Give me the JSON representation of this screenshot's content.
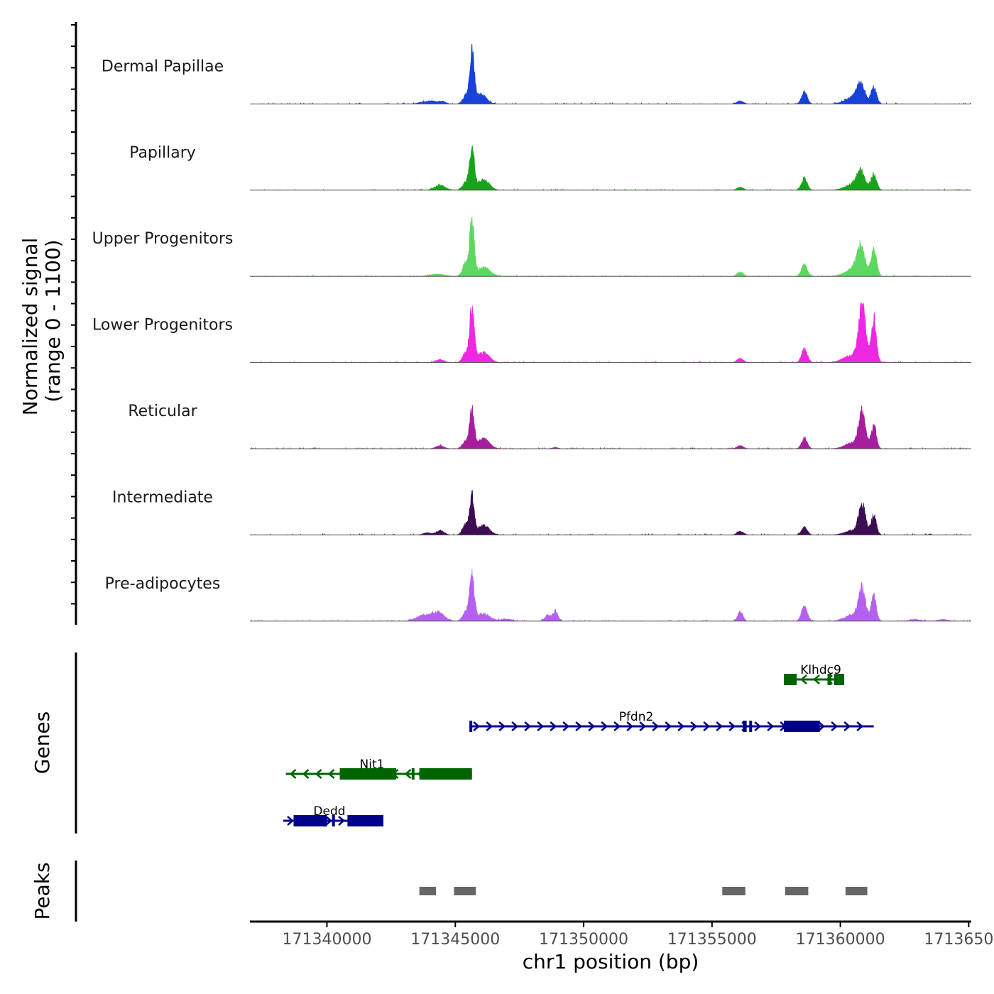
{
  "chart_data": {
    "type": "area",
    "title": "",
    "chromosome": "chr1",
    "xlabel": "chr1 position (bp)",
    "ylabel_line1": "Normalized signal",
    "ylabel_line2": "(range 0 - 1100)",
    "ylim": [
      0,
      1100
    ],
    "xlim": [
      171337000,
      171365100
    ],
    "x_ticks": [
      171340000,
      171345000,
      171350000,
      171355000,
      171360000,
      171365000
    ],
    "x_tick_labels": [
      "171340000",
      "171345000",
      "171350000",
      "171355000",
      "171360000",
      "171365000"
    ],
    "series": [
      {
        "name": "Dermal Papillae",
        "color": "#1741d8",
        "peaks": [
          [
            171344500,
            40,
            120
          ],
          [
            171345400,
            150,
            120
          ],
          [
            171345650,
            1000,
            90
          ],
          [
            171346000,
            190,
            200
          ],
          [
            171344000,
            60,
            300
          ],
          [
            171356100,
            60,
            120
          ],
          [
            171358600,
            230,
            110
          ],
          [
            171360800,
            340,
            150
          ],
          [
            171361300,
            320,
            110
          ],
          [
            171360500,
            130,
            300
          ]
        ]
      },
      {
        "name": "Papillary",
        "color": "#1aa31a",
        "peaks": [
          [
            171344400,
            100,
            200
          ],
          [
            171345400,
            150,
            120
          ],
          [
            171345650,
            820,
            90
          ],
          [
            171346100,
            200,
            220
          ],
          [
            171356100,
            60,
            120
          ],
          [
            171358600,
            230,
            110
          ],
          [
            171360800,
            330,
            150
          ],
          [
            171361300,
            320,
            110
          ],
          [
            171360500,
            120,
            300
          ]
        ]
      },
      {
        "name": "Upper Progenitors",
        "color": "#5ed760",
        "peaks": [
          [
            171344300,
            40,
            300
          ],
          [
            171345400,
            250,
            120
          ],
          [
            171345650,
            1030,
            90
          ],
          [
            171346100,
            170,
            250
          ],
          [
            171356100,
            80,
            120
          ],
          [
            171358600,
            250,
            110
          ],
          [
            171360800,
            540,
            150
          ],
          [
            171361300,
            500,
            110
          ],
          [
            171360500,
            150,
            300
          ]
        ]
      },
      {
        "name": "Lower Progenitors",
        "color": "#ee27e3",
        "peaks": [
          [
            171344400,
            60,
            150
          ],
          [
            171345400,
            180,
            120
          ],
          [
            171345650,
            1030,
            90
          ],
          [
            171346100,
            200,
            220
          ],
          [
            171356100,
            80,
            120
          ],
          [
            171358600,
            270,
            110
          ],
          [
            171360850,
            1090,
            130
          ],
          [
            171361300,
            850,
            100
          ],
          [
            171360500,
            150,
            350
          ]
        ]
      },
      {
        "name": "Reticular",
        "color": "#a51e9d",
        "peaks": [
          [
            171344400,
            60,
            150
          ],
          [
            171345400,
            150,
            120
          ],
          [
            171345650,
            720,
            90
          ],
          [
            171346100,
            200,
            220
          ],
          [
            171348900,
            25,
            100
          ],
          [
            171356100,
            60,
            120
          ],
          [
            171358600,
            200,
            110
          ],
          [
            171360850,
            700,
            130
          ],
          [
            171361300,
            450,
            100
          ],
          [
            171360500,
            120,
            300
          ]
        ]
      },
      {
        "name": "Intermediate",
        "color": "#3c0d52",
        "peaks": [
          [
            171343900,
            40,
            150
          ],
          [
            171344400,
            90,
            150
          ],
          [
            171345400,
            200,
            120
          ],
          [
            171345650,
            720,
            90
          ],
          [
            171346100,
            190,
            220
          ],
          [
            171356100,
            70,
            120
          ],
          [
            171358600,
            150,
            110
          ],
          [
            171360850,
            570,
            130
          ],
          [
            171361300,
            390,
            100
          ],
          [
            171360500,
            90,
            300
          ]
        ]
      },
      {
        "name": "Pre-adipocytes",
        "color": "#b660f0",
        "peaks": [
          [
            171343700,
            100,
            250
          ],
          [
            171344300,
            180,
            250
          ],
          [
            171345400,
            180,
            120
          ],
          [
            171345650,
            850,
            90
          ],
          [
            171346100,
            150,
            250
          ],
          [
            171347000,
            40,
            200
          ],
          [
            171348600,
            110,
            120
          ],
          [
            171348900,
            200,
            100
          ],
          [
            171356100,
            190,
            100
          ],
          [
            171358600,
            300,
            110
          ],
          [
            171360850,
            620,
            130
          ],
          [
            171361300,
            480,
            100
          ],
          [
            171360500,
            130,
            300
          ],
          [
            171362900,
            30,
            200
          ],
          [
            171364000,
            30,
            200
          ]
        ]
      }
    ],
    "genes": [
      {
        "name": "Klhdc9",
        "strand": "-",
        "color": "#006400",
        "start": 171357800,
        "end": 171360150,
        "exons": [
          [
            171357800,
            171358300
          ],
          [
            171359500,
            171359650
          ],
          [
            171359750,
            171359950
          ],
          [
            171359950,
            171360150
          ],
          [
            171359990,
            171360150
          ]
        ]
      },
      {
        "name": "Pfdn2",
        "strand": "+",
        "color": "#00008b",
        "start": 171345550,
        "end": 171361300,
        "exons": [
          [
            171345550,
            171345650
          ],
          [
            171356200,
            171356350
          ],
          [
            171356450,
            171356550
          ],
          [
            171357800,
            171359200
          ]
        ]
      },
      {
        "name": "Nit1",
        "strand": "-",
        "color": "#006400",
        "start": 171338400,
        "end": 171345650,
        "exons": [
          [
            171340500,
            171342700
          ],
          [
            171343300,
            171343400
          ],
          [
            171343600,
            171345650
          ]
        ]
      },
      {
        "name": "Dedd",
        "strand": "+",
        "color": "#00008b",
        "start": 171338300,
        "end": 171342200,
        "exons": [
          [
            171338700,
            171340000
          ],
          [
            171340200,
            171340300
          ],
          [
            171340800,
            171342200
          ]
        ]
      }
    ],
    "peaks_track": [
      [
        171343600,
        171344250
      ],
      [
        171344950,
        171345800
      ],
      [
        171355400,
        171356300
      ],
      [
        171357850,
        171358750
      ],
      [
        171360200,
        171361050
      ]
    ],
    "gene_track_label": "Genes",
    "peak_track_label": "Peaks"
  }
}
